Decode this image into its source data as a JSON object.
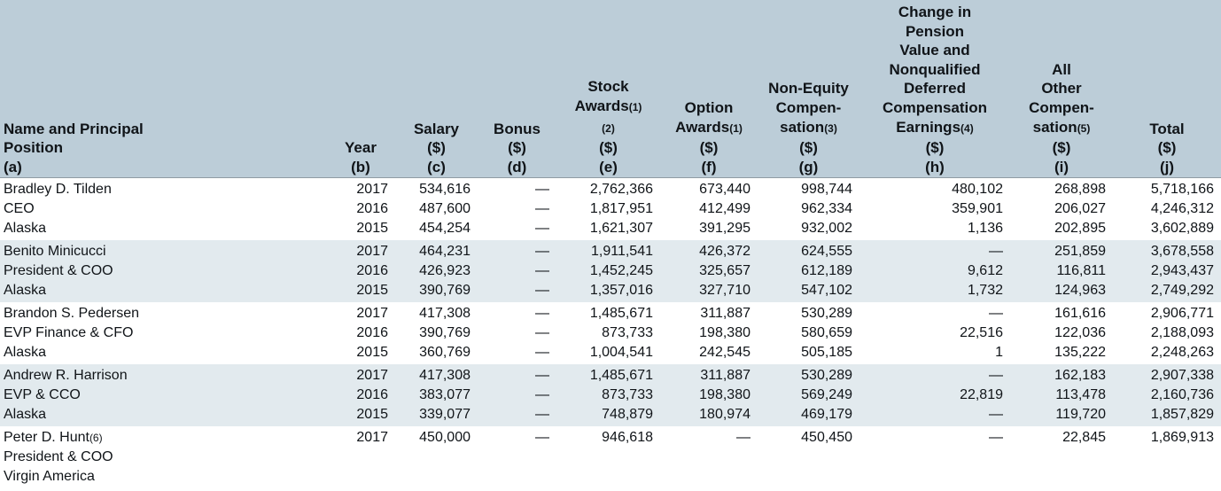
{
  "document": {
    "title": "Summary Compensation Table",
    "colors": {
      "header_bg": "#bccdd8",
      "band_bg": "#e2eaee",
      "header_border": "#8f9ba3",
      "text": "#101418"
    },
    "columns": [
      {
        "id": "name",
        "align": "left",
        "lines": [
          [
            "Name and Principal"
          ],
          [
            "Position"
          ],
          [
            "(a)"
          ]
        ]
      },
      {
        "id": "year",
        "lines": [
          [
            "Year"
          ],
          [
            "(b)"
          ]
        ]
      },
      {
        "id": "salary",
        "lines": [
          [
            "Salary"
          ],
          [
            "($)"
          ],
          [
            "(c)"
          ]
        ]
      },
      {
        "id": "bonus",
        "lines": [
          [
            "Bonus"
          ],
          [
            "($)"
          ],
          [
            "(d)"
          ]
        ]
      },
      {
        "id": "stock-awards",
        "lines": [
          [
            "Stock"
          ],
          [
            "Awards",
            {
              "fn": "(1)"
            }
          ],
          [
            {
              "fn": "(2)"
            }
          ],
          [
            "($)"
          ],
          [
            "(e)"
          ]
        ]
      },
      {
        "id": "option-awards",
        "lines": [
          [
            "Option"
          ],
          [
            "Awards",
            {
              "fn": "(1)"
            }
          ],
          [
            "($)"
          ],
          [
            "(f)"
          ]
        ]
      },
      {
        "id": "non-equity-compensation",
        "lines": [
          [
            "Non-Equity"
          ],
          [
            "Compen-"
          ],
          [
            "sation",
            {
              "fn": "(3)"
            }
          ],
          [
            "($)"
          ],
          [
            "(g)"
          ]
        ]
      },
      {
        "id": "pension-and-deferred-earnings",
        "lines": [
          [
            "Change in"
          ],
          [
            "Pension"
          ],
          [
            "Value and"
          ],
          [
            "Nonqualified"
          ],
          [
            "Deferred"
          ],
          [
            "Compensation"
          ],
          [
            "Earnings",
            {
              "fn": "(4)"
            }
          ],
          [
            "($)"
          ],
          [
            "(h)"
          ]
        ]
      },
      {
        "id": "all-other-compensation",
        "lines": [
          [
            "All"
          ],
          [
            "Other"
          ],
          [
            "Compen-"
          ],
          [
            "sation",
            {
              "fn": "(5)"
            }
          ],
          [
            "($)"
          ],
          [
            "(i)"
          ]
        ]
      },
      {
        "id": "total",
        "lines": [
          [
            "Total"
          ],
          [
            "($)"
          ],
          [
            "(j)"
          ]
        ]
      }
    ],
    "groups": [
      {
        "shaded": false,
        "rows": [
          [
            [
              "Bradley D. Tilden"
            ],
            "2017",
            "534,616",
            "—",
            "2,762,366",
            "673,440",
            "998,744",
            "480,102",
            "268,898",
            "5,718,166"
          ],
          [
            [
              "CEO"
            ],
            "2016",
            "487,600",
            "—",
            "1,817,951",
            "412,499",
            "962,334",
            "359,901",
            "206,027",
            "4,246,312"
          ],
          [
            [
              "Alaska"
            ],
            "2015",
            "454,254",
            "—",
            "1,621,307",
            "391,295",
            "932,002",
            "1,136",
            "202,895",
            "3,602,889"
          ]
        ]
      },
      {
        "shaded": true,
        "rows": [
          [
            [
              "Benito Minicucci"
            ],
            "2017",
            "464,231",
            "—",
            "1,911,541",
            "426,372",
            "624,555",
            "—",
            "251,859",
            "3,678,558"
          ],
          [
            [
              "President & COO"
            ],
            "2016",
            "426,923",
            "—",
            "1,452,245",
            "325,657",
            "612,189",
            "9,612",
            "116,811",
            "2,943,437"
          ],
          [
            [
              "Alaska"
            ],
            "2015",
            "390,769",
            "—",
            "1,357,016",
            "327,710",
            "547,102",
            "1,732",
            "124,963",
            "2,749,292"
          ]
        ]
      },
      {
        "shaded": false,
        "rows": [
          [
            [
              "Brandon S. Pedersen"
            ],
            "2017",
            "417,308",
            "—",
            "1,485,671",
            "311,887",
            "530,289",
            "—",
            "161,616",
            "2,906,771"
          ],
          [
            [
              "EVP Finance & CFO"
            ],
            "2016",
            "390,769",
            "—",
            "873,733",
            "198,380",
            "580,659",
            "22,516",
            "122,036",
            "2,188,093"
          ],
          [
            [
              "Alaska"
            ],
            "2015",
            "360,769",
            "—",
            "1,004,541",
            "242,545",
            "505,185",
            "1",
            "135,222",
            "2,248,263"
          ]
        ]
      },
      {
        "shaded": true,
        "rows": [
          [
            [
              "Andrew R. Harrison"
            ],
            "2017",
            "417,308",
            "—",
            "1,485,671",
            "311,887",
            "530,289",
            "—",
            "162,183",
            "2,907,338"
          ],
          [
            [
              "EVP & CCO"
            ],
            "2016",
            "383,077",
            "—",
            "873,733",
            "198,380",
            "569,249",
            "22,819",
            "113,478",
            "2,160,736"
          ],
          [
            [
              "Alaska"
            ],
            "2015",
            "339,077",
            "—",
            "748,879",
            "180,974",
            "469,179",
            "—",
            "119,720",
            "1,857,829"
          ]
        ]
      },
      {
        "shaded": false,
        "rows": [
          [
            [
              "Peter D. Hunt",
              {
                "fn": "(6)"
              }
            ],
            "2017",
            "450,000",
            "—",
            "946,618",
            "—",
            "450,450",
            "—",
            "22,845",
            "1,869,913"
          ],
          [
            [
              "President & COO"
            ],
            "",
            "",
            "",
            "",
            "",
            "",
            "",
            "",
            ""
          ],
          [
            [
              "Virgin America"
            ],
            "",
            "",
            "",
            "",
            "",
            "",
            "",
            "",
            ""
          ]
        ]
      }
    ]
  }
}
